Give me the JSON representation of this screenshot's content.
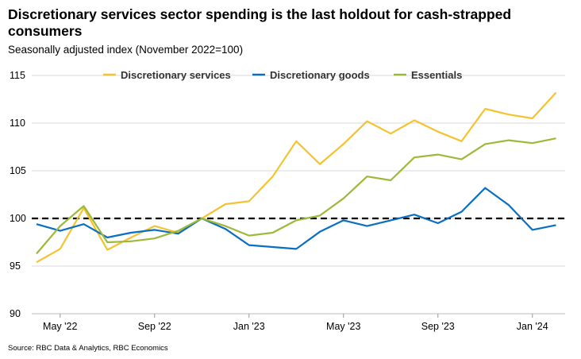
{
  "title": "Discretionary services sector spending is the last holdout for cash-strapped consumers",
  "subtitle": "Seasonally adjusted index (November 2022=100)",
  "source": "Source: RBC Data & Analytics, RBC Economics",
  "chart_data": {
    "type": "line",
    "title": "Discretionary services sector spending is the last holdout for cash-strapped consumers",
    "subtitle": "Seasonally adjusted index (November 2022=100)",
    "x": [
      "Apr 2022",
      "May 2022",
      "Jun 2022",
      "Jul 2022",
      "Aug 2022",
      "Sep 2022",
      "Oct 2022",
      "Nov 2022",
      "Dec 2022",
      "Jan 2023",
      "Feb 2023",
      "Mar 2023",
      "Apr 2023",
      "May 2023",
      "Jun 2023",
      "Jul 2023",
      "Aug 2023",
      "Sep 2023",
      "Oct 2023",
      "Nov 2023",
      "Dec 2023",
      "Jan 2024",
      "Feb 2024"
    ],
    "x_tick_labels": [
      {
        "label": "May '22",
        "index": 1
      },
      {
        "label": "Sep '22",
        "index": 5
      },
      {
        "label": "Jan '23",
        "index": 9
      },
      {
        "label": "May '23",
        "index": 13
      },
      {
        "label": "Sep '23",
        "index": 17
      },
      {
        "label": "Jan '24",
        "index": 21
      }
    ],
    "ylim": [
      90,
      115
    ],
    "y_ticks": [
      90,
      95,
      100,
      105,
      110,
      115
    ],
    "grid": true,
    "legend": "top",
    "reference_line": {
      "value": 100,
      "style": "dashed",
      "color": "#000000"
    },
    "series": [
      {
        "name": "Discretionary services",
        "color": "#F5C330",
        "values": [
          95.4,
          96.8,
          101.1,
          96.7,
          98.0,
          99.2,
          98.5,
          100,
          101.5,
          101.8,
          104.4,
          108.1,
          105.7,
          107.8,
          110.2,
          108.9,
          110.3,
          109.1,
          108.1,
          111.5,
          110.9,
          110.5,
          113.2
        ]
      },
      {
        "name": "Discretionary goods",
        "color": "#0A6FC2",
        "values": [
          99.4,
          98.7,
          99.4,
          98.0,
          98.5,
          98.8,
          98.4,
          100,
          98.9,
          97.2,
          97.0,
          96.8,
          98.6,
          99.8,
          99.2,
          99.8,
          100.4,
          99.5,
          100.7,
          103.2,
          101.4,
          98.8,
          99.3
        ]
      },
      {
        "name": "Essentials",
        "color": "#9DB93A",
        "values": [
          96.3,
          99.2,
          101.3,
          97.5,
          97.6,
          97.9,
          98.7,
          100,
          99.2,
          98.2,
          98.5,
          99.8,
          100.3,
          102.1,
          104.4,
          104.0,
          106.4,
          106.7,
          106.2,
          107.8,
          108.2,
          107.9,
          108.4
        ]
      }
    ]
  }
}
